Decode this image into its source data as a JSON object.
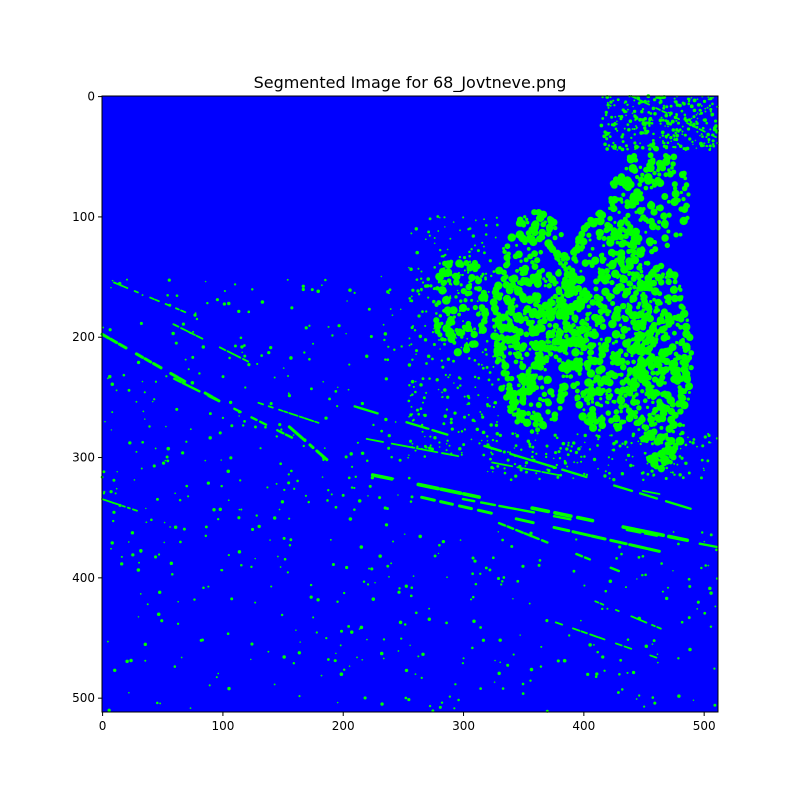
{
  "chart_data": {
    "type": "heatmap",
    "title": "Segmented Image for 68_Jovtneve.png",
    "xlabel": "",
    "ylabel": "",
    "image_size": [
      512,
      512
    ],
    "xlim": [
      0,
      512
    ],
    "ylim": [
      512,
      0
    ],
    "x_ticks": [
      0,
      100,
      200,
      300,
      400,
      500
    ],
    "y_ticks": [
      0,
      100,
      200,
      300,
      400,
      500
    ],
    "x_tick_labels": [
      "0",
      "100",
      "200",
      "300",
      "400",
      "500"
    ],
    "y_tick_labels": [
      "0",
      "100",
      "200",
      "300",
      "400",
      "500"
    ],
    "grid": false,
    "legend": "none",
    "classes": [
      {
        "id": 0,
        "color": "#0000ff"
      },
      {
        "id": 1,
        "color": "#00ff00"
      }
    ],
    "background_class": 0,
    "regions": [
      {
        "class": 1,
        "shape": "dense-speckle",
        "x": [
          415,
          512
        ],
        "y": [
          0,
          45
        ],
        "density": 0.45
      },
      {
        "class": 1,
        "shape": "blob",
        "x": [
          325,
          395
        ],
        "y": [
          95,
          280
        ],
        "density": 0.55
      },
      {
        "class": 1,
        "shape": "blob",
        "x": [
          380,
          460
        ],
        "y": [
          95,
          280
        ],
        "density": 0.55
      },
      {
        "class": 1,
        "shape": "blob",
        "x": [
          440,
          490
        ],
        "y": [
          140,
          310
        ],
        "density": 0.6
      },
      {
        "class": 1,
        "shape": "blob",
        "x": [
          275,
          320
        ],
        "y": [
          130,
          215
        ],
        "density": 0.4
      },
      {
        "class": 1,
        "shape": "blob",
        "x": [
          420,
          490
        ],
        "y": [
          40,
          130
        ],
        "density": 0.35
      },
      {
        "class": 1,
        "shape": "speckle",
        "x": [
          255,
          330
        ],
        "y": [
          100,
          300
        ],
        "density": 0.08
      },
      {
        "class": 1,
        "shape": "speckle",
        "x": [
          320,
          512
        ],
        "y": [
          280,
          320
        ],
        "density": 0.1
      },
      {
        "class": 1,
        "shape": "speckle",
        "x": [
          0,
          512
        ],
        "y": [
          360,
          512
        ],
        "density": 0.015
      },
      {
        "class": 1,
        "shape": "speckle",
        "x": [
          0,
          260
        ],
        "y": [
          150,
          360
        ],
        "density": 0.02
      }
    ],
    "streaks": [
      {
        "class": 1,
        "from": [
          0,
          198
        ],
        "to": [
          100,
          255
        ],
        "width": 2.5
      },
      {
        "class": 1,
        "from": [
          60,
          235
        ],
        "to": [
          160,
          285
        ],
        "width": 2
      },
      {
        "class": 1,
        "from": [
          150,
          270
        ],
        "to": [
          190,
          305
        ],
        "width": 2.5
      },
      {
        "class": 1,
        "from": [
          210,
          258
        ],
        "to": [
          512,
          350
        ],
        "width": 2
      },
      {
        "class": 1,
        "from": [
          220,
          285
        ],
        "to": [
          512,
          340
        ],
        "width": 1.5
      },
      {
        "class": 1,
        "from": [
          225,
          315
        ],
        "to": [
          490,
          370
        ],
        "width": 3
      },
      {
        "class": 1,
        "from": [
          250,
          330
        ],
        "to": [
          470,
          380
        ],
        "width": 2.5
      },
      {
        "class": 1,
        "from": [
          300,
          335
        ],
        "to": [
          512,
          375
        ],
        "width": 2
      },
      {
        "class": 1,
        "from": [
          330,
          355
        ],
        "to": [
          430,
          395
        ],
        "width": 2
      },
      {
        "class": 1,
        "from": [
          10,
          155
        ],
        "to": [
          70,
          180
        ],
        "width": 1.5
      },
      {
        "class": 1,
        "from": [
          40,
          180
        ],
        "to": [
          130,
          225
        ],
        "width": 1.5
      },
      {
        "class": 1,
        "from": [
          130,
          255
        ],
        "to": [
          190,
          275
        ],
        "width": 1.5
      },
      {
        "class": 1,
        "from": [
          0,
          335
        ],
        "to": [
          30,
          345
        ],
        "width": 1.5
      },
      {
        "class": 1,
        "from": [
          440,
          0
        ],
        "to": [
          512,
          35
        ],
        "width": 1.5
      },
      {
        "class": 1,
        "from": [
          370,
          435
        ],
        "to": [
          470,
          470
        ],
        "width": 1.5
      },
      {
        "class": 1,
        "from": [
          410,
          420
        ],
        "to": [
          470,
          445
        ],
        "width": 1.5
      }
    ]
  }
}
